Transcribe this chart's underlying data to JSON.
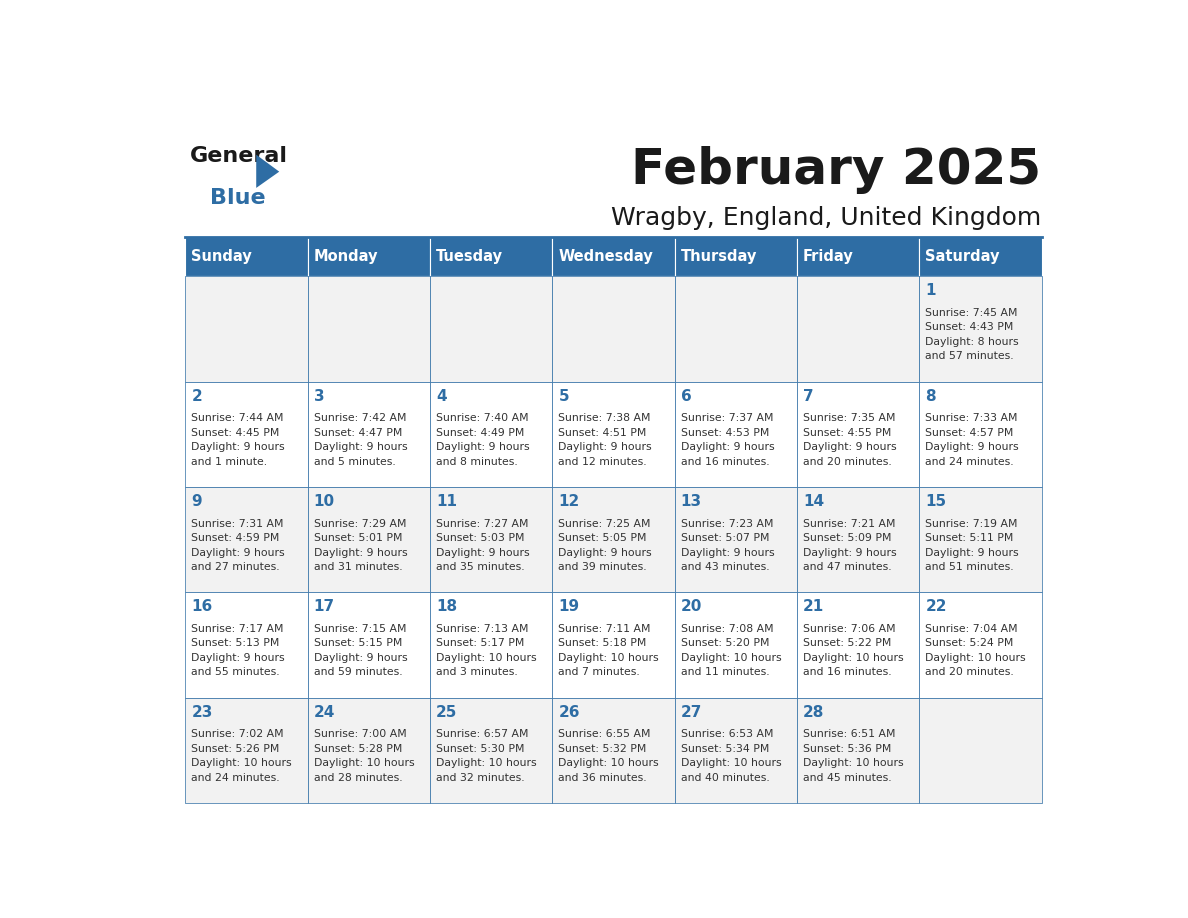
{
  "title": "February 2025",
  "subtitle": "Wragby, England, United Kingdom",
  "header_bg": "#2E6DA4",
  "header_text_color": "#FFFFFF",
  "cell_bg_odd": "#F2F2F2",
  "cell_bg_even": "#FFFFFF",
  "day_number_color": "#2E6DA4",
  "info_text_color": "#333333",
  "border_color": "#2E6DA4",
  "days_of_week": [
    "Sunday",
    "Monday",
    "Tuesday",
    "Wednesday",
    "Thursday",
    "Friday",
    "Saturday"
  ],
  "weeks": [
    [
      {
        "day": "",
        "info": ""
      },
      {
        "day": "",
        "info": ""
      },
      {
        "day": "",
        "info": ""
      },
      {
        "day": "",
        "info": ""
      },
      {
        "day": "",
        "info": ""
      },
      {
        "day": "",
        "info": ""
      },
      {
        "day": "1",
        "info": "Sunrise: 7:45 AM\nSunset: 4:43 PM\nDaylight: 8 hours\nand 57 minutes."
      }
    ],
    [
      {
        "day": "2",
        "info": "Sunrise: 7:44 AM\nSunset: 4:45 PM\nDaylight: 9 hours\nand 1 minute."
      },
      {
        "day": "3",
        "info": "Sunrise: 7:42 AM\nSunset: 4:47 PM\nDaylight: 9 hours\nand 5 minutes."
      },
      {
        "day": "4",
        "info": "Sunrise: 7:40 AM\nSunset: 4:49 PM\nDaylight: 9 hours\nand 8 minutes."
      },
      {
        "day": "5",
        "info": "Sunrise: 7:38 AM\nSunset: 4:51 PM\nDaylight: 9 hours\nand 12 minutes."
      },
      {
        "day": "6",
        "info": "Sunrise: 7:37 AM\nSunset: 4:53 PM\nDaylight: 9 hours\nand 16 minutes."
      },
      {
        "day": "7",
        "info": "Sunrise: 7:35 AM\nSunset: 4:55 PM\nDaylight: 9 hours\nand 20 minutes."
      },
      {
        "day": "8",
        "info": "Sunrise: 7:33 AM\nSunset: 4:57 PM\nDaylight: 9 hours\nand 24 minutes."
      }
    ],
    [
      {
        "day": "9",
        "info": "Sunrise: 7:31 AM\nSunset: 4:59 PM\nDaylight: 9 hours\nand 27 minutes."
      },
      {
        "day": "10",
        "info": "Sunrise: 7:29 AM\nSunset: 5:01 PM\nDaylight: 9 hours\nand 31 minutes."
      },
      {
        "day": "11",
        "info": "Sunrise: 7:27 AM\nSunset: 5:03 PM\nDaylight: 9 hours\nand 35 minutes."
      },
      {
        "day": "12",
        "info": "Sunrise: 7:25 AM\nSunset: 5:05 PM\nDaylight: 9 hours\nand 39 minutes."
      },
      {
        "day": "13",
        "info": "Sunrise: 7:23 AM\nSunset: 5:07 PM\nDaylight: 9 hours\nand 43 minutes."
      },
      {
        "day": "14",
        "info": "Sunrise: 7:21 AM\nSunset: 5:09 PM\nDaylight: 9 hours\nand 47 minutes."
      },
      {
        "day": "15",
        "info": "Sunrise: 7:19 AM\nSunset: 5:11 PM\nDaylight: 9 hours\nand 51 minutes."
      }
    ],
    [
      {
        "day": "16",
        "info": "Sunrise: 7:17 AM\nSunset: 5:13 PM\nDaylight: 9 hours\nand 55 minutes."
      },
      {
        "day": "17",
        "info": "Sunrise: 7:15 AM\nSunset: 5:15 PM\nDaylight: 9 hours\nand 59 minutes."
      },
      {
        "day": "18",
        "info": "Sunrise: 7:13 AM\nSunset: 5:17 PM\nDaylight: 10 hours\nand 3 minutes."
      },
      {
        "day": "19",
        "info": "Sunrise: 7:11 AM\nSunset: 5:18 PM\nDaylight: 10 hours\nand 7 minutes."
      },
      {
        "day": "20",
        "info": "Sunrise: 7:08 AM\nSunset: 5:20 PM\nDaylight: 10 hours\nand 11 minutes."
      },
      {
        "day": "21",
        "info": "Sunrise: 7:06 AM\nSunset: 5:22 PM\nDaylight: 10 hours\nand 16 minutes."
      },
      {
        "day": "22",
        "info": "Sunrise: 7:04 AM\nSunset: 5:24 PM\nDaylight: 10 hours\nand 20 minutes."
      }
    ],
    [
      {
        "day": "23",
        "info": "Sunrise: 7:02 AM\nSunset: 5:26 PM\nDaylight: 10 hours\nand 24 minutes."
      },
      {
        "day": "24",
        "info": "Sunrise: 7:00 AM\nSunset: 5:28 PM\nDaylight: 10 hours\nand 28 minutes."
      },
      {
        "day": "25",
        "info": "Sunrise: 6:57 AM\nSunset: 5:30 PM\nDaylight: 10 hours\nand 32 minutes."
      },
      {
        "day": "26",
        "info": "Sunrise: 6:55 AM\nSunset: 5:32 PM\nDaylight: 10 hours\nand 36 minutes."
      },
      {
        "day": "27",
        "info": "Sunrise: 6:53 AM\nSunset: 5:34 PM\nDaylight: 10 hours\nand 40 minutes."
      },
      {
        "day": "28",
        "info": "Sunrise: 6:51 AM\nSunset: 5:36 PM\nDaylight: 10 hours\nand 45 minutes."
      },
      {
        "day": "",
        "info": ""
      }
    ]
  ],
  "logo_color_general": "#1a1a1a",
  "logo_color_blue": "#2E6DA4",
  "logo_triangle_color": "#2E6DA4"
}
